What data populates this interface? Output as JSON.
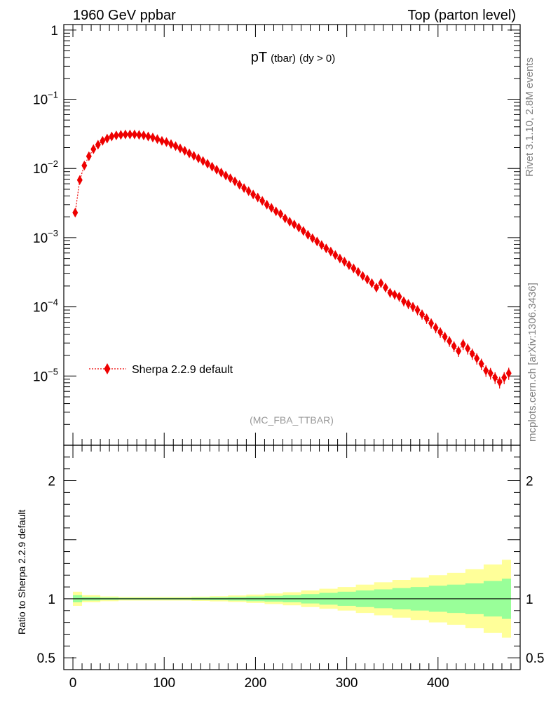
{
  "header": {
    "left": "1960 GeV ppbar",
    "right": "Top (parton level)"
  },
  "side": {
    "rivet": "Rivet 3.1.10,  2.8M events",
    "source": "mcplots.cern.ch [arXiv:1306.3436]"
  },
  "analysis_tag": "(MC_FBA_TTBAR)",
  "title": {
    "main": "pT",
    "sub1": "(tbar)",
    "sub2": "(dy > 0)"
  },
  "colors": {
    "series": "#ee0000",
    "band_inner": "#99ff99",
    "band_outer": "#ffff99"
  },
  "chart_data": [
    {
      "type": "scatter",
      "title": "pT (tbar) (dy > 0)",
      "xlabel": "",
      "ylabel": "",
      "yscale": "log",
      "xlim": [
        -10,
        490
      ],
      "ylim": [
        1e-06,
        1.2
      ],
      "ytick_labels": [
        "1",
        "10^-1",
        "10^-2",
        "10^-3",
        "10^-4",
        "10^-5"
      ],
      "legend": {
        "entry": "Sherpa 2.2.9 default",
        "placement": "bottom-left"
      },
      "series": [
        {
          "name": "Sherpa 2.2.9 default",
          "x": [
            2.5,
            7.5,
            12.5,
            17.5,
            22.5,
            27.5,
            32.5,
            37.5,
            42.5,
            47.5,
            52.5,
            57.5,
            62.5,
            67.5,
            72.5,
            77.5,
            82.5,
            87.5,
            92.5,
            97.5,
            102.5,
            107.5,
            112.5,
            117.5,
            122.5,
            127.5,
            132.5,
            137.5,
            142.5,
            147.5,
            152.5,
            157.5,
            162.5,
            167.5,
            172.5,
            177.5,
            182.5,
            187.5,
            192.5,
            197.5,
            202.5,
            207.5,
            212.5,
            217.5,
            222.5,
            227.5,
            232.5,
            237.5,
            242.5,
            247.5,
            252.5,
            257.5,
            262.5,
            267.5,
            272.5,
            277.5,
            282.5,
            287.5,
            292.5,
            297.5,
            302.5,
            307.5,
            312.5,
            317.5,
            322.5,
            327.5,
            332.5,
            337.5,
            342.5,
            347.5,
            352.5,
            357.5,
            362.5,
            367.5,
            372.5,
            377.5,
            382.5,
            387.5,
            392.5,
            397.5,
            402.5,
            407.5,
            412.5,
            417.5,
            422.5,
            427.5,
            432.5,
            437.5,
            442.5,
            447.5,
            452.5,
            457.5,
            462.5,
            467.5,
            472.5,
            477.5
          ],
          "y": [
            0.0023,
            0.0068,
            0.011,
            0.015,
            0.019,
            0.022,
            0.025,
            0.027,
            0.029,
            0.03,
            0.0305,
            0.031,
            0.031,
            0.031,
            0.0305,
            0.03,
            0.029,
            0.028,
            0.0265,
            0.025,
            0.024,
            0.0225,
            0.021,
            0.0195,
            0.018,
            0.0165,
            0.0152,
            0.014,
            0.0128,
            0.0117,
            0.0106,
            0.0096,
            0.0087,
            0.0079,
            0.0072,
            0.0065,
            0.0058,
            0.0052,
            0.0047,
            0.0042,
            0.0038,
            0.0034,
            0.003,
            0.0027,
            0.0024,
            0.0022,
            0.0019,
            0.0017,
            0.00155,
            0.0014,
            0.00125,
            0.0011,
            0.00098,
            0.00088,
            0.00078,
            0.0007,
            0.00063,
            0.00056,
            0.0005,
            0.00045,
            0.0004,
            0.00036,
            0.00032,
            0.00028,
            0.00025,
            0.00022,
            0.00019,
            0.00022,
            0.00019,
            0.00016,
            0.00015,
            0.00014,
            0.00012,
            0.00011,
            0.0001,
            9e-05,
            7.8e-05,
            6.8e-05,
            5.8e-05,
            5e-05,
            4.3e-05,
            3.7e-05,
            3.2e-05,
            2.7e-05,
            2.3e-05,
            2.9e-05,
            2.5e-05,
            2.1e-05,
            1.8e-05,
            1.5e-05,
            1.2e-05,
            1.1e-05,
            9.5e-06,
            8.2e-06,
            9.5e-06,
            1.1e-05
          ]
        }
      ]
    },
    {
      "type": "area",
      "title": "",
      "xlabel": "",
      "ylabel": "Ratio to Sherpa 2.2.9 default",
      "xlim": [
        -10,
        490
      ],
      "ylim": [
        0.4,
        2.3
      ],
      "x_ticks": [
        0,
        100,
        200,
        300,
        400
      ],
      "y_ticks": [
        0.5,
        1,
        2
      ],
      "reference_line": 1,
      "band_x": [
        0,
        20,
        40,
        60,
        80,
        100,
        120,
        140,
        160,
        180,
        200,
        220,
        240,
        260,
        280,
        300,
        320,
        340,
        360,
        380,
        400,
        420,
        440,
        460,
        480
      ],
      "band_outer_halfwidth": [
        0.06,
        0.03,
        0.02,
        0.015,
        0.015,
        0.015,
        0.015,
        0.018,
        0.022,
        0.028,
        0.035,
        0.045,
        0.055,
        0.07,
        0.085,
        0.1,
        0.12,
        0.14,
        0.16,
        0.18,
        0.2,
        0.22,
        0.25,
        0.29,
        0.33
      ],
      "band_inner_halfwidth": [
        0.03,
        0.015,
        0.01,
        0.008,
        0.008,
        0.008,
        0.008,
        0.01,
        0.012,
        0.015,
        0.02,
        0.025,
        0.03,
        0.04,
        0.05,
        0.06,
        0.07,
        0.08,
        0.09,
        0.1,
        0.11,
        0.12,
        0.13,
        0.15,
        0.17
      ]
    }
  ]
}
